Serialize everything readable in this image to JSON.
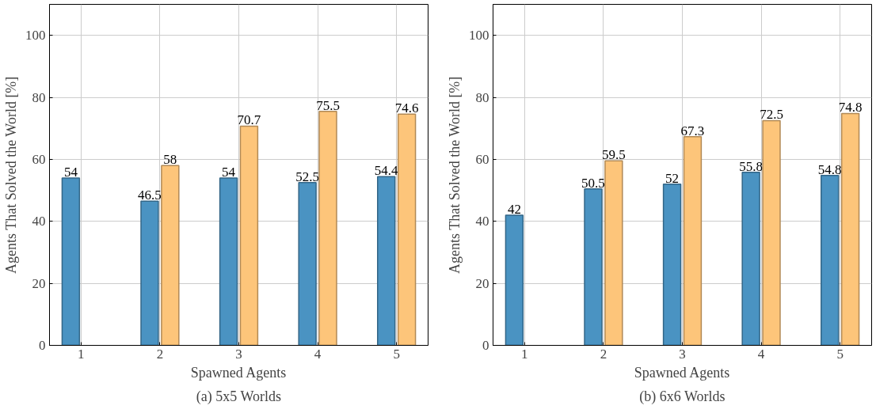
{
  "chart_data": [
    {
      "type": "bar",
      "title": "(a) 5x5 Worlds",
      "xlabel": "Spawned Agents",
      "ylabel": "Agents That Solved the World [%]",
      "categories": [
        "1",
        "2",
        "3",
        "4",
        "5"
      ],
      "series": [
        {
          "color": "#4a93c2",
          "values": [
            54,
            46.5,
            54,
            52.5,
            54.4
          ]
        },
        {
          "color": "#fdc57a",
          "values": [
            null,
            58,
            70.7,
            75.5,
            74.6
          ]
        }
      ],
      "ylim": [
        0,
        110
      ],
      "yticks": [
        0,
        20,
        40,
        60,
        80,
        100
      ],
      "grid": true,
      "data_labels": true
    },
    {
      "type": "bar",
      "title": "(b) 6x6 Worlds",
      "xlabel": "Spawned Agents",
      "ylabel": "Agents That Solved the World [%]",
      "categories": [
        "1",
        "2",
        "3",
        "4",
        "5"
      ],
      "series": [
        {
          "color": "#4a93c2",
          "values": [
            42,
            50.5,
            52,
            55.8,
            54.8
          ]
        },
        {
          "color": "#fdc57a",
          "values": [
            null,
            59.5,
            67.3,
            72.5,
            74.8
          ]
        }
      ],
      "ylim": [
        0,
        110
      ],
      "yticks": [
        0,
        20,
        40,
        60,
        80,
        100
      ],
      "grid": true,
      "data_labels": true
    }
  ]
}
